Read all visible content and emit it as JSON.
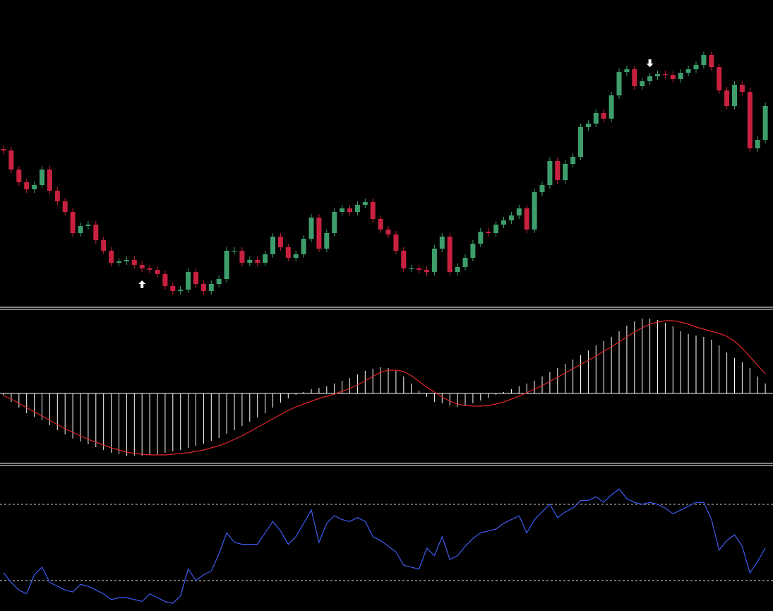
{
  "chart_data": [
    {
      "type": "candlestick",
      "ylim": [
        0,
        435
      ],
      "up_color": "#3d9e6c",
      "down_color": "#c8213f",
      "signal_color": "#ffffff",
      "open": [
        224,
        222,
        195,
        177,
        167,
        173,
        195,
        165,
        150,
        135,
        105,
        115,
        117,
        95,
        80,
        63,
        65,
        67,
        60,
        55,
        53,
        47,
        30,
        23,
        25,
        50,
        33,
        23,
        33,
        40,
        80,
        80,
        63,
        67,
        63,
        75,
        100,
        85,
        70,
        75,
        97,
        127,
        83,
        105,
        135,
        140,
        135,
        145,
        149,
        125,
        110,
        103,
        80,
        55,
        55,
        53,
        50,
        83,
        100,
        50,
        57,
        70,
        90,
        107,
        105,
        117,
        123,
        130,
        140,
        110,
        163,
        173,
        207,
        180,
        203,
        213,
        255,
        260,
        275,
        267,
        300,
        333,
        337,
        313,
        320,
        327,
        330,
        329,
        323,
        332,
        337,
        343,
        357,
        340,
        307,
        285,
        315,
        305,
        225,
        237
      ],
      "high": [
        229,
        227,
        200,
        182,
        178,
        200,
        200,
        170,
        155,
        140,
        120,
        122,
        122,
        100,
        85,
        70,
        72,
        72,
        65,
        60,
        58,
        52,
        35,
        30,
        55,
        55,
        38,
        38,
        45,
        85,
        85,
        85,
        72,
        72,
        80,
        105,
        105,
        90,
        80,
        102,
        132,
        132,
        110,
        140,
        145,
        145,
        150,
        154,
        154,
        130,
        115,
        108,
        85,
        60,
        60,
        58,
        88,
        105,
        105,
        62,
        75,
        95,
        112,
        112,
        122,
        128,
        135,
        145,
        145,
        168,
        178,
        212,
        212,
        208,
        218,
        260,
        265,
        280,
        280,
        305,
        338,
        342,
        342,
        325,
        332,
        335,
        335,
        334,
        337,
        342,
        348,
        362,
        362,
        345,
        312,
        320,
        320,
        310,
        242,
        290
      ],
      "low": [
        217,
        190,
        172,
        162,
        162,
        168,
        160,
        145,
        130,
        100,
        100,
        110,
        90,
        75,
        58,
        58,
        60,
        55,
        50,
        48,
        42,
        25,
        18,
        18,
        20,
        28,
        18,
        18,
        28,
        35,
        75,
        58,
        58,
        58,
        58,
        70,
        80,
        65,
        65,
        70,
        92,
        78,
        78,
        100,
        130,
        130,
        130,
        140,
        120,
        105,
        98,
        75,
        50,
        50,
        48,
        45,
        45,
        78,
        45,
        45,
        52,
        65,
        85,
        100,
        100,
        112,
        118,
        125,
        105,
        105,
        158,
        168,
        175,
        175,
        198,
        208,
        250,
        255,
        262,
        262,
        295,
        328,
        308,
        308,
        315,
        322,
        324,
        318,
        318,
        327,
        332,
        338,
        335,
        302,
        280,
        280,
        300,
        220,
        220,
        232
      ],
      "close": [
        222,
        195,
        177,
        167,
        173,
        195,
        165,
        150,
        135,
        105,
        115,
        117,
        95,
        80,
        63,
        65,
        67,
        60,
        55,
        53,
        47,
        30,
        23,
        25,
        50,
        33,
        23,
        33,
        40,
        80,
        80,
        63,
        67,
        63,
        75,
        100,
        85,
        70,
        75,
        97,
        127,
        83,
        105,
        135,
        140,
        135,
        145,
        149,
        125,
        110,
        103,
        80,
        55,
        55,
        53,
        50,
        83,
        100,
        50,
        57,
        70,
        90,
        107,
        105,
        117,
        123,
        130,
        140,
        110,
        163,
        173,
        207,
        180,
        203,
        213,
        255,
        260,
        275,
        267,
        300,
        333,
        337,
        313,
        320,
        327,
        330,
        329,
        323,
        332,
        337,
        343,
        357,
        340,
        307,
        285,
        315,
        305,
        225,
        237,
        285
      ],
      "buy_signals": [
        18
      ],
      "sell_signals": [
        84
      ]
    },
    {
      "type": "macd",
      "ylim": [
        -98,
        117
      ],
      "zero_line": 0,
      "histogram_color": "#ffffff",
      "signal_color": "#e0262a",
      "histogram": [
        -3,
        -12,
        -20,
        -28,
        -33,
        -38,
        -45,
        -52,
        -58,
        -64,
        -68,
        -72,
        -76,
        -80,
        -84,
        -86,
        -88,
        -88,
        -88,
        -87,
        -86,
        -84,
        -82,
        -80,
        -77,
        -74,
        -71,
        -67,
        -63,
        -57,
        -52,
        -46,
        -40,
        -34,
        -28,
        -20,
        -13,
        -7,
        -2,
        2,
        6,
        8,
        10,
        14,
        18,
        22,
        27,
        32,
        35,
        37,
        36,
        32,
        24,
        14,
        4,
        -5,
        -12,
        -14,
        -17,
        -19,
        -18,
        -14,
        -10,
        -6,
        -2,
        2,
        6,
        10,
        14,
        18,
        24,
        30,
        36,
        42,
        48,
        54,
        61,
        68,
        74,
        80,
        88,
        96,
        102,
        106,
        106,
        104,
        100,
        95,
        88,
        84,
        82,
        80,
        76,
        68,
        58,
        50,
        44,
        36,
        24,
        14
      ],
      "signal": [
        -3,
        -8,
        -14,
        -20,
        -26,
        -32,
        -38,
        -44,
        -50,
        -55,
        -60,
        -65,
        -69,
        -73,
        -77,
        -80,
        -83,
        -85,
        -86,
        -87,
        -87,
        -87,
        -86,
        -85,
        -84,
        -82,
        -80,
        -77,
        -74,
        -70,
        -65,
        -60,
        -54,
        -48,
        -42,
        -36,
        -30,
        -24,
        -19,
        -15,
        -11,
        -7,
        -4,
        -1,
        3,
        7,
        12,
        18,
        24,
        30,
        33,
        33,
        31,
        25,
        17,
        9,
        2,
        -5,
        -11,
        -15,
        -17,
        -18,
        -18,
        -17,
        -15,
        -12,
        -8,
        -4,
        1,
        6,
        11,
        17,
        23,
        29,
        35,
        41,
        47,
        53,
        60,
        66,
        73,
        80,
        87,
        93,
        98,
        101,
        103,
        103,
        101,
        98,
        94,
        91,
        88,
        85,
        81,
        74,
        64,
        52,
        40,
        28
      ]
    },
    {
      "type": "line",
      "ylim": [
        14,
        90
      ],
      "levels": [
        30,
        70
      ],
      "color": "#3f5cf0",
      "level_color": "#cccccc",
      "values": [
        34,
        29,
        25,
        23,
        33,
        37,
        29,
        27,
        25,
        24,
        28,
        27,
        25,
        23,
        20,
        21,
        21,
        20,
        19,
        23,
        21,
        19,
        18,
        22,
        36,
        30,
        33,
        35,
        44,
        55,
        50,
        49,
        49,
        49,
        55,
        61,
        56,
        49,
        53,
        60,
        67,
        50,
        60,
        64,
        62,
        61,
        63,
        61,
        53,
        51,
        48,
        45,
        38,
        37,
        36,
        47,
        43,
        53,
        41,
        43,
        48,
        52,
        55,
        56,
        57,
        60,
        62,
        64,
        55,
        62,
        66,
        70,
        63,
        66,
        68,
        72,
        72,
        74,
        71,
        75,
        78,
        73,
        71,
        70,
        71,
        70,
        68,
        65,
        67,
        69,
        71,
        71,
        62,
        46,
        51,
        54,
        48,
        34,
        40,
        47
      ]
    }
  ]
}
